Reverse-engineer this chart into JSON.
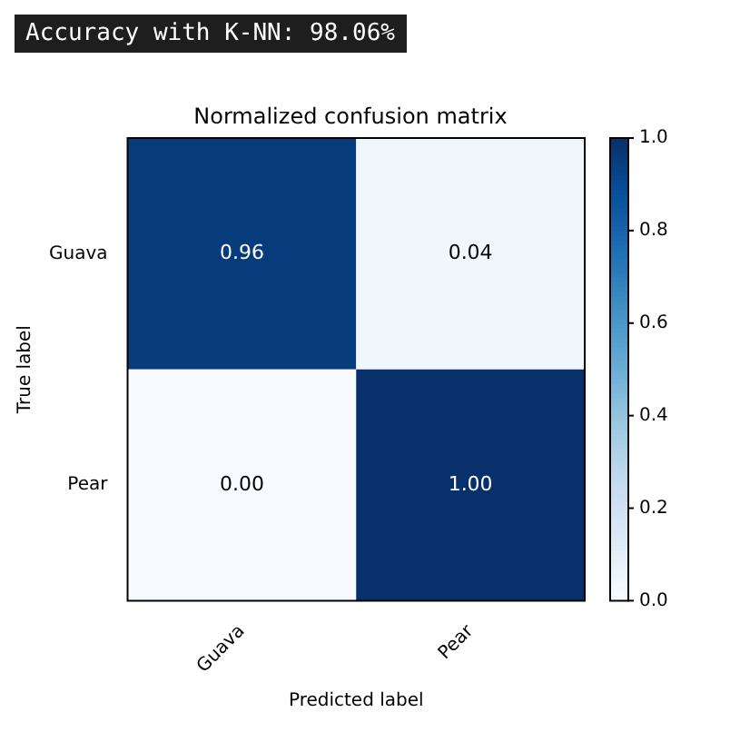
{
  "chart_data": {
    "type": "heatmap",
    "title": "Normalized confusion matrix",
    "xlabel": "Predicted label",
    "ylabel": "True label",
    "annotations": [
      "Accuracy with K-NN: 98.06%"
    ],
    "categories": [
      "Guava",
      "Pear"
    ],
    "y_categories": [
      "Guava",
      "Pear"
    ],
    "cells": [
      [
        0.96,
        0.04
      ],
      [
        0.0,
        1.0
      ]
    ],
    "cell_labels": [
      [
        "0.96",
        "0.04"
      ],
      [
        "0.00",
        "1.00"
      ]
    ],
    "clim": [
      0,
      1
    ],
    "cticks": [
      {
        "value": 0,
        "label": "0.0"
      },
      {
        "value": 0.2,
        "label": "0.2"
      },
      {
        "value": 0.4,
        "label": "0.4"
      },
      {
        "value": 0.6,
        "label": "0.6"
      },
      {
        "value": 0.8,
        "label": "0.8"
      },
      {
        "value": 1,
        "label": "1.0"
      }
    ]
  }
}
